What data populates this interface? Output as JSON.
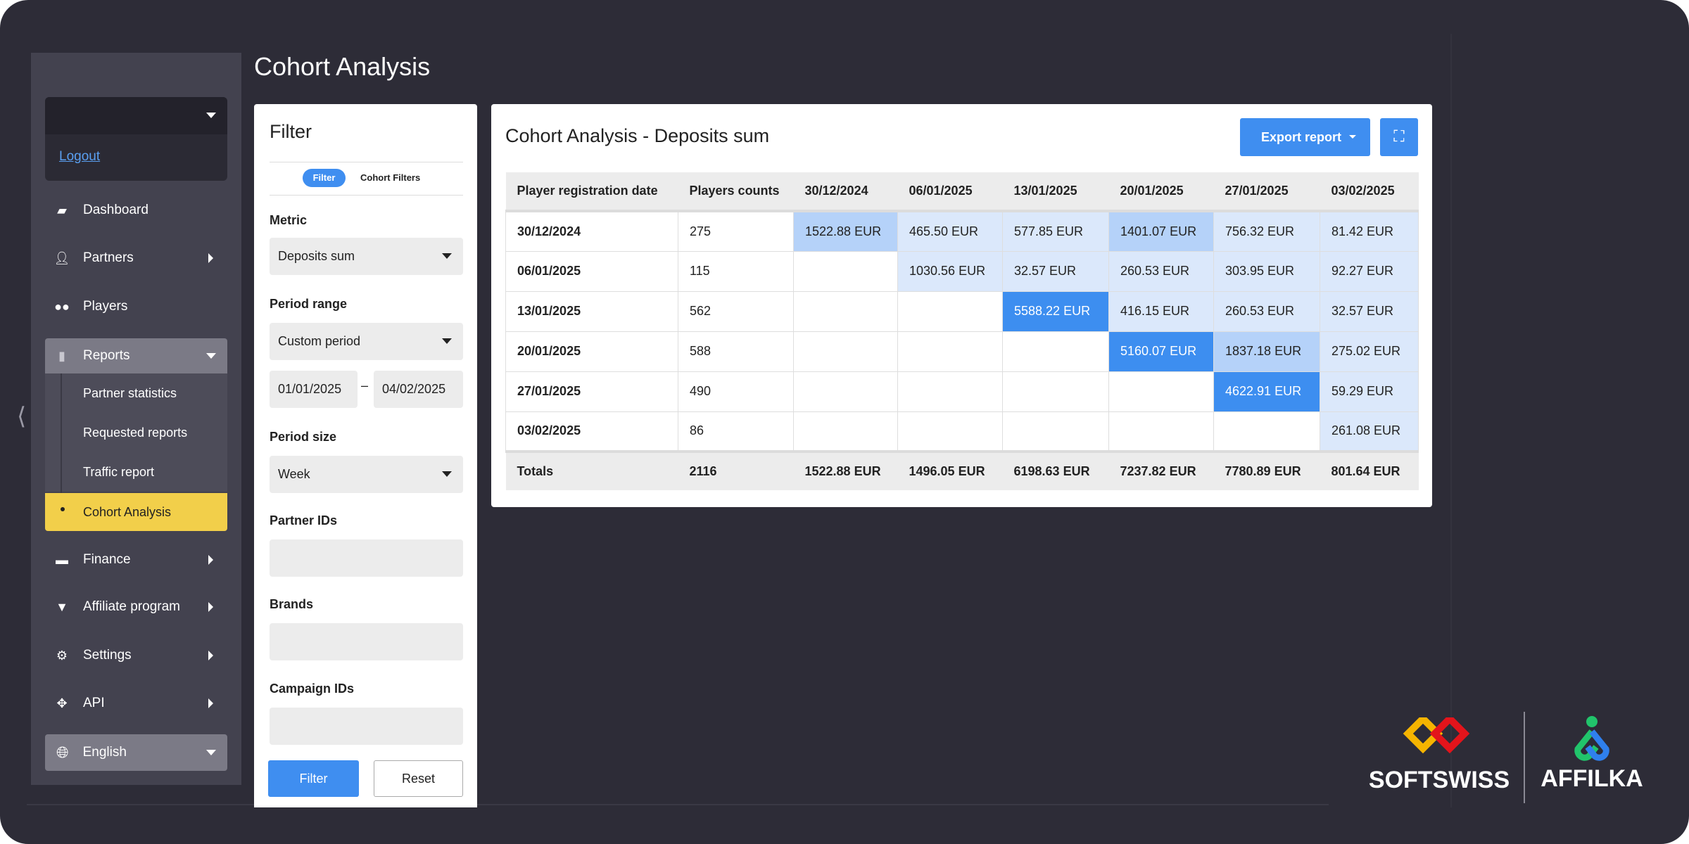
{
  "page_title": "Cohort Analysis",
  "sidebar": {
    "account_dropdown_value": "",
    "logout": "Logout",
    "items": [
      {
        "label": "Dashboard",
        "icon": "dashboard-icon"
      },
      {
        "label": "Partners",
        "icon": "user-icon"
      },
      {
        "label": "Players",
        "icon": "binoculars-icon"
      },
      {
        "label": "Reports",
        "icon": "clipboard-icon"
      },
      {
        "label": "Finance",
        "icon": "card-icon"
      },
      {
        "label": "Affiliate program",
        "icon": "diamond-icon"
      },
      {
        "label": "Settings",
        "icon": "gear-icon"
      },
      {
        "label": "API",
        "icon": "api-icon"
      }
    ],
    "reports_sub": [
      "Partner statistics",
      "Requested reports",
      "Traffic report",
      "Cohort Analysis"
    ],
    "language": "English"
  },
  "filter": {
    "title": "Filter",
    "tabs": [
      "Filter",
      "Cohort Filters"
    ],
    "metric_label": "Metric",
    "metric_value": "Deposits sum",
    "period_range_label": "Period range",
    "period_range_value": "Custom period",
    "date_from": "01/01/2025",
    "date_sep": "–",
    "date_to": "04/02/2025",
    "period_size_label": "Period size",
    "period_size_value": "Week",
    "partner_ids_label": "Partner IDs",
    "partner_ids_value": "",
    "brands_label": "Brands",
    "brands_value": "",
    "campaign_ids_label": "Campaign IDs",
    "campaign_ids_value": "",
    "filter_button": "Filter",
    "reset_button": "Reset"
  },
  "report": {
    "title": "Cohort Analysis - Deposits sum",
    "export_button": "Export report",
    "columns": [
      "Player registration date",
      "Players counts",
      "30/12/2024",
      "06/01/2025",
      "13/01/2025",
      "20/01/2025",
      "27/01/2025",
      "03/02/2025"
    ],
    "rows": [
      {
        "date": "30/12/2024",
        "count": "275",
        "cells": [
          [
            "1522.88 EUR",
            2
          ],
          [
            "465.50 EUR",
            1
          ],
          [
            "577.85 EUR",
            1
          ],
          [
            "1401.07 EUR",
            2
          ],
          [
            "756.32 EUR",
            1
          ],
          [
            "81.42 EUR",
            1
          ]
        ]
      },
      {
        "date": "06/01/2025",
        "count": "115",
        "cells": [
          [
            "",
            0
          ],
          [
            "1030.56 EUR",
            1
          ],
          [
            "32.57 EUR",
            1
          ],
          [
            "260.53 EUR",
            1
          ],
          [
            "303.95 EUR",
            1
          ],
          [
            "92.27 EUR",
            1
          ]
        ]
      },
      {
        "date": "13/01/2025",
        "count": "562",
        "cells": [
          [
            "",
            0
          ],
          [
            "",
            0
          ],
          [
            "5588.22 EUR",
            3
          ],
          [
            "416.15 EUR",
            1
          ],
          [
            "260.53 EUR",
            1
          ],
          [
            "32.57 EUR",
            1
          ]
        ]
      },
      {
        "date": "20/01/2025",
        "count": "588",
        "cells": [
          [
            "",
            0
          ],
          [
            "",
            0
          ],
          [
            "",
            0
          ],
          [
            "5160.07 EUR",
            3
          ],
          [
            "1837.18 EUR",
            2
          ],
          [
            "275.02 EUR",
            1
          ]
        ]
      },
      {
        "date": "27/01/2025",
        "count": "490",
        "cells": [
          [
            "",
            0
          ],
          [
            "",
            0
          ],
          [
            "",
            0
          ],
          [
            "",
            0
          ],
          [
            "4622.91 EUR",
            3
          ],
          [
            "59.29 EUR",
            1
          ]
        ]
      },
      {
        "date": "03/02/2025",
        "count": "86",
        "cells": [
          [
            "",
            0
          ],
          [
            "",
            0
          ],
          [
            "",
            0
          ],
          [
            "",
            0
          ],
          [
            "",
            0
          ],
          [
            "261.08 EUR",
            1
          ]
        ]
      }
    ],
    "totals": [
      "Totals",
      "2116",
      "1522.88 EUR",
      "1496.05 EUR",
      "6198.63 EUR",
      "7237.82 EUR",
      "7780.89 EUR",
      "801.64 EUR"
    ],
    "heat_colors": {
      "1": "#dbe8fb",
      "2": "#b5d2f9",
      "3": "#3d8ef0"
    }
  },
  "logos": {
    "softswiss": "SOFTSWISS",
    "affilka": "AFFILKA"
  },
  "colors": {
    "accent": "#3f8ef0",
    "active_item": "#f2cf4a",
    "background": "#2d2c37",
    "sidebar": "#43424f"
  }
}
